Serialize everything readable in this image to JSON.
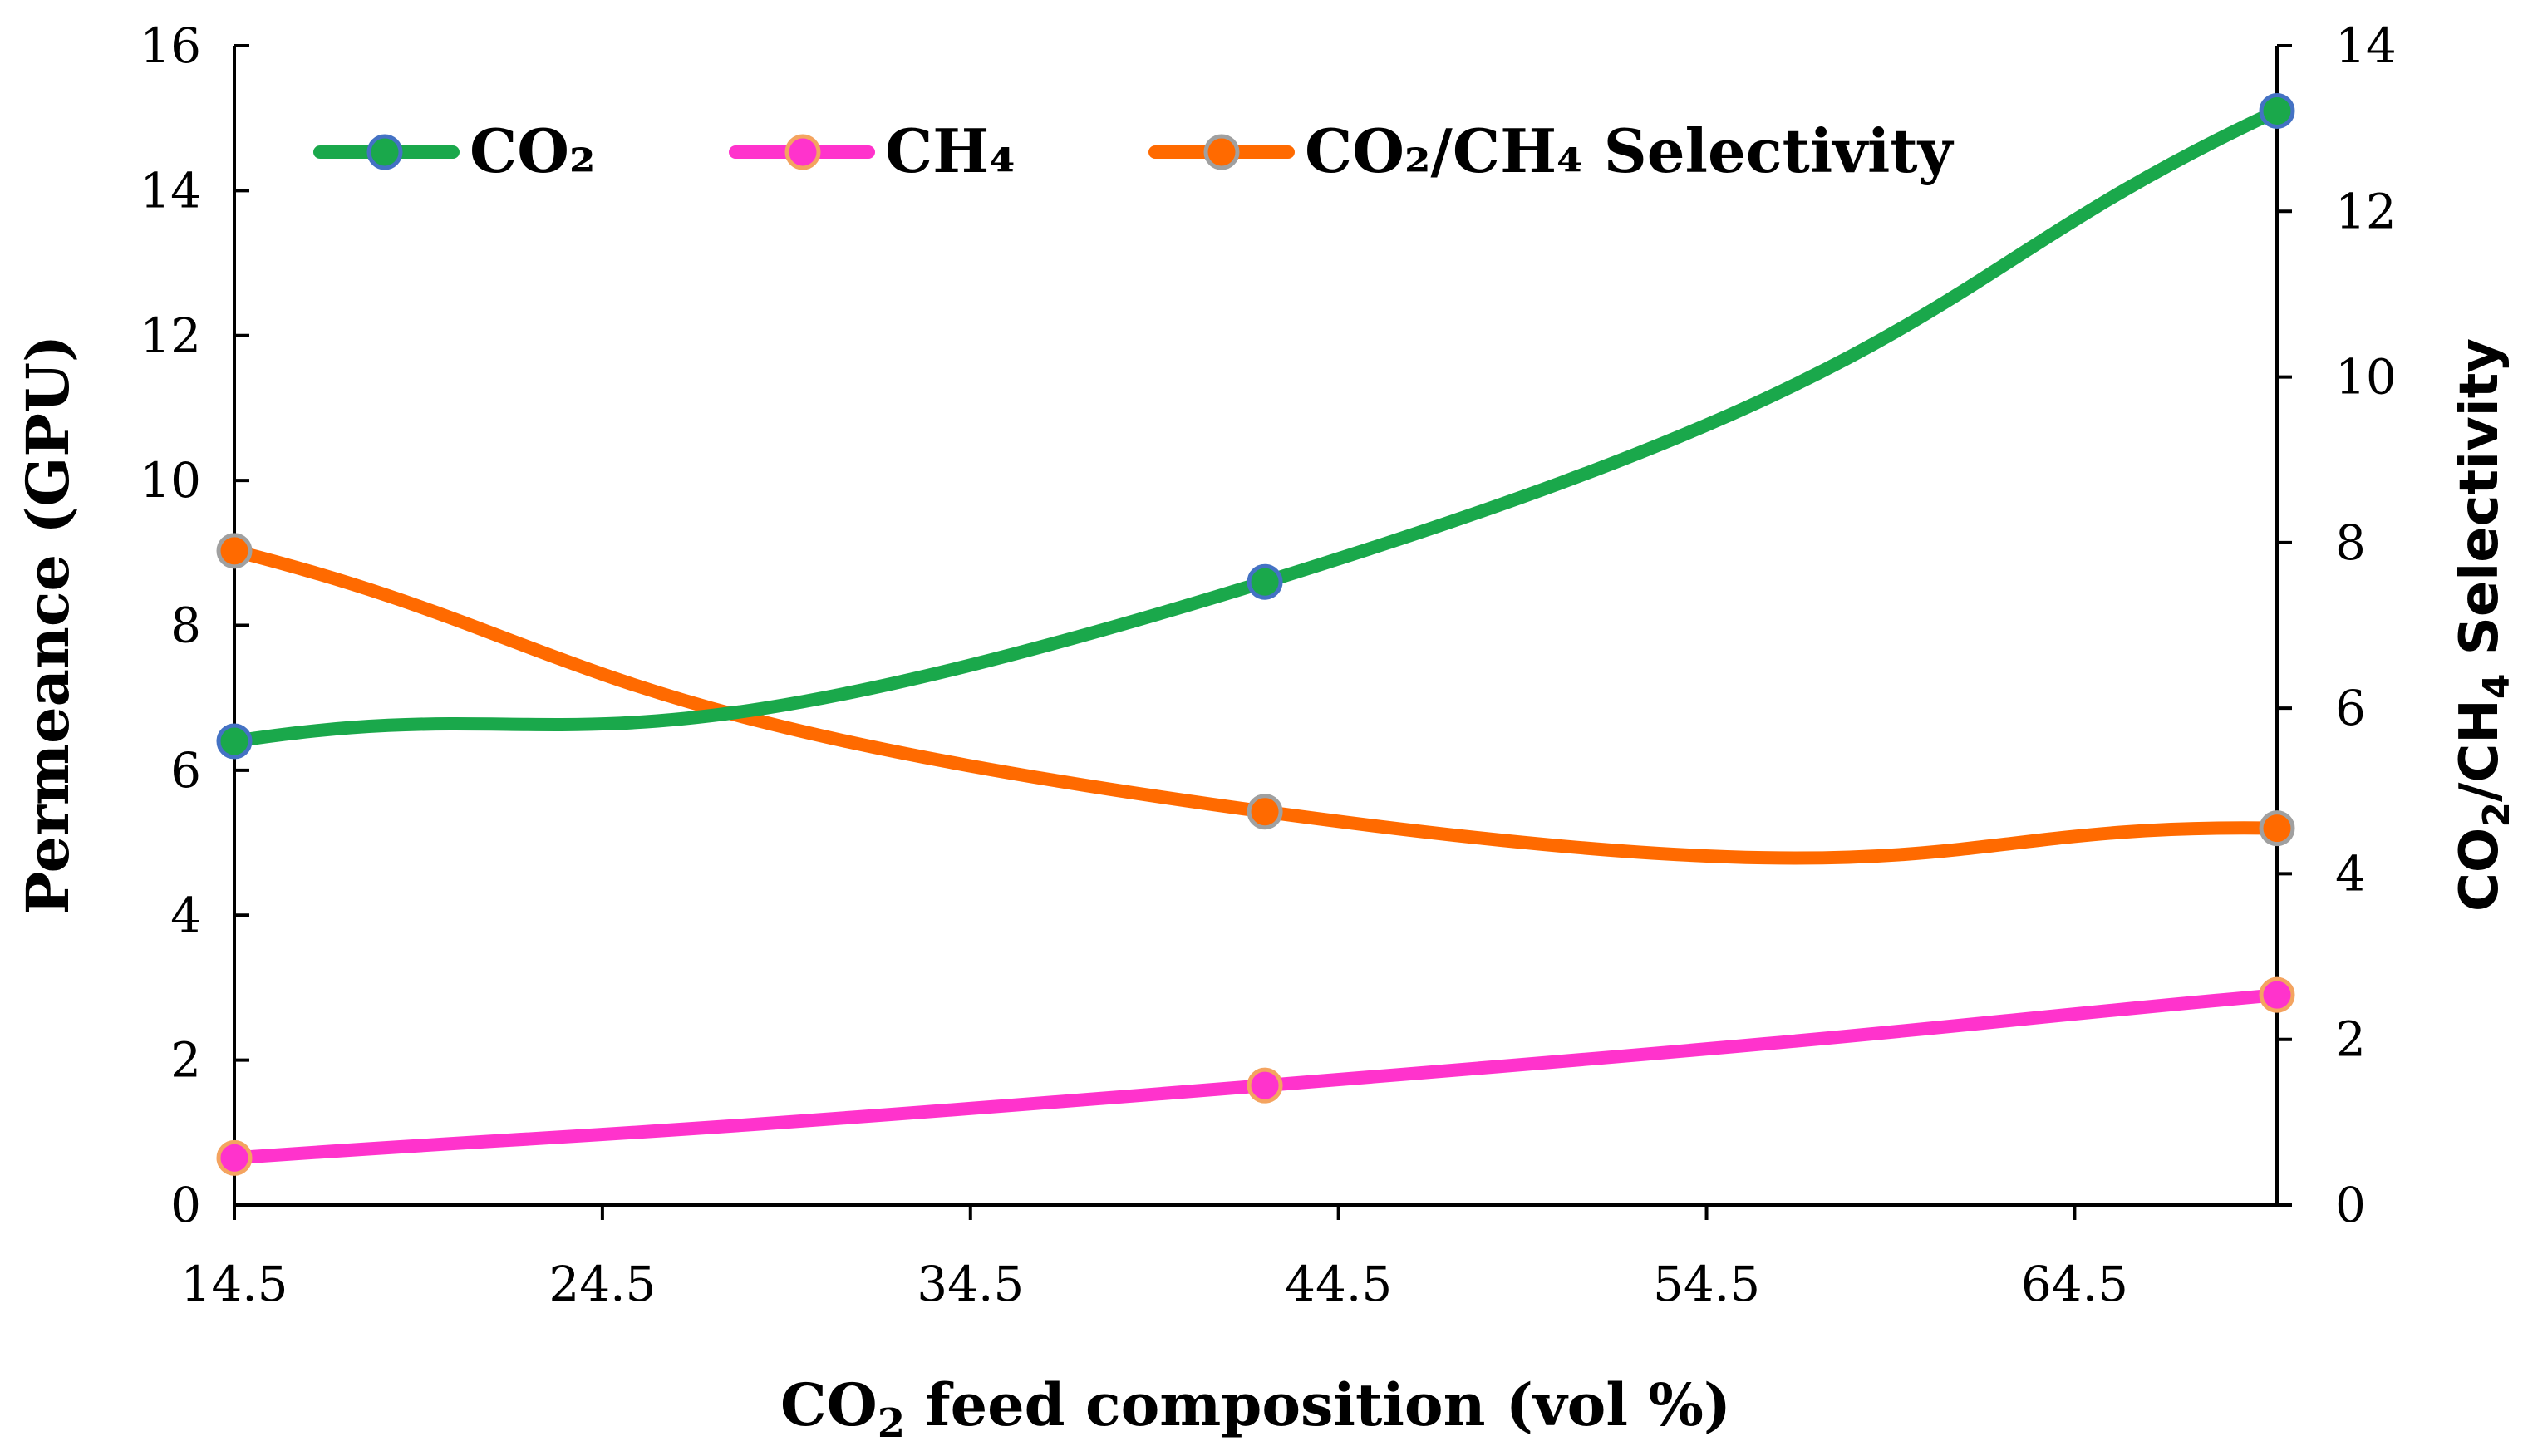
{
  "chart_data": {
    "type": "line",
    "x": [
      14.5,
      42.5,
      70
    ],
    "x_ticks": [
      "14.5",
      "24.5",
      "34.5",
      "44.5",
      "54.5",
      "64.5"
    ],
    "xlim": [
      14.5,
      70
    ],
    "ylim_left": [
      0,
      16
    ],
    "ylim_right": [
      0,
      14
    ],
    "y_ticks_left": [
      "0",
      "2",
      "4",
      "6",
      "8",
      "10",
      "12",
      "14",
      "16"
    ],
    "y_ticks_right": [
      "0",
      "2",
      "4",
      "6",
      "8",
      "10",
      "12",
      "14"
    ],
    "xlabel": {
      "pre": "CO",
      "sub": "2",
      "post": " feed composition (vol %)"
    },
    "ylabel_left": "Permeance (GPU)",
    "ylabel_right": {
      "a": "CO",
      "a_sub": "2",
      "b": "/CH",
      "b_sub": "4",
      "c": " Selectivity"
    },
    "series": [
      {
        "key": "co2",
        "name": "CO₂",
        "axis": "left",
        "values": [
          6.4,
          8.6,
          15.1
        ],
        "color": "#1aa84b",
        "marker_stroke": "#4472c4"
      },
      {
        "key": "ch4",
        "name": "CH₄",
        "axis": "left",
        "values": [
          0.65,
          1.65,
          2.9
        ],
        "color": "#ff33cc",
        "marker_stroke": "#f4a460"
      },
      {
        "key": "sel",
        "name": "CO₂/CH₄ Selectivity",
        "axis": "right",
        "values": [
          7.9,
          4.75,
          4.55
        ],
        "color": "#ff6a00",
        "marker_stroke": "#a0a0a0"
      }
    ],
    "legend": {
      "position": "top-left",
      "co2": "CO₂",
      "ch4": "CH₄",
      "sel": "CO₂/CH₄ Selectivity"
    }
  }
}
